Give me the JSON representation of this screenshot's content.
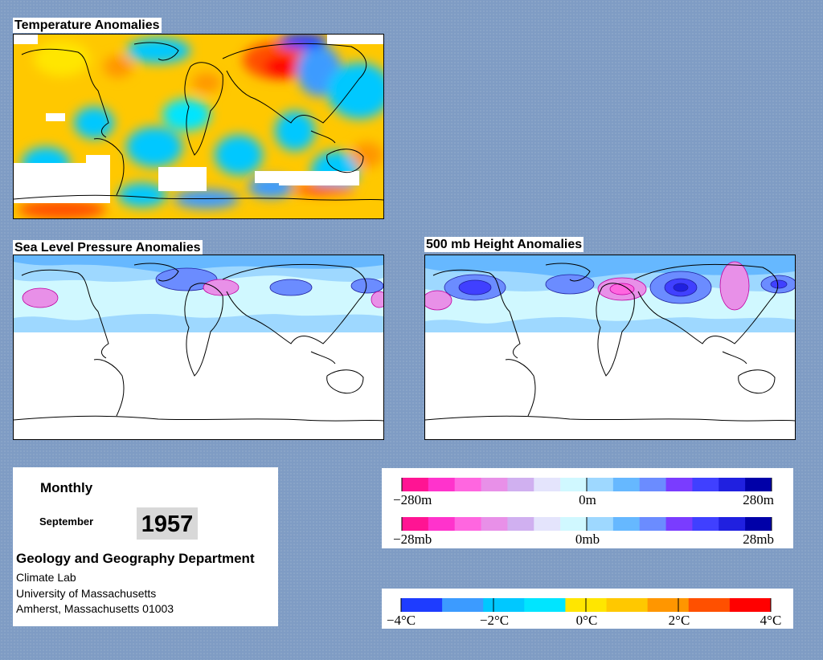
{
  "panels": {
    "temperature": {
      "title": "Temperature Anomalies"
    },
    "slp": {
      "title": "Sea Level Pressure Anomalies"
    },
    "height500": {
      "title": "500 mb Height Anomalies"
    }
  },
  "info": {
    "period": "Monthly",
    "month": "September",
    "year": "1957",
    "department": "Geology and Geography Department",
    "lab": "Climate Lab",
    "university": "University of Massachusetts",
    "address": "Amherst, Massachusetts 01003"
  },
  "legends": {
    "height": {
      "labels": [
        "−280m",
        "0m",
        "280m"
      ]
    },
    "pressure": {
      "labels": [
        "−28mb",
        "0mb",
        "28mb"
      ]
    },
    "temperature": {
      "labels": [
        "−4°C",
        "−2°C",
        "0°C",
        "2°C",
        "4°C"
      ]
    }
  },
  "colors": {
    "background": "#7f9cc4",
    "anomaly_scale": [
      "#ff1493",
      "#ff33cc",
      "#ff66e0",
      "#e890e8",
      "#d0b0f0",
      "#e4e4fc",
      "#d0f8ff",
      "#9ed8ff",
      "#66b8ff",
      "#6b8cff",
      "#7a3cff",
      "#4040ff",
      "#2020e0",
      "#0000a8"
    ],
    "temperature_scale": [
      "#1e3cff",
      "#3c9bff",
      "#00c8ff",
      "#00e5ff",
      "#ffe600",
      "#ffc800",
      "#ff9600",
      "#ff5000",
      "#ff0000"
    ]
  }
}
